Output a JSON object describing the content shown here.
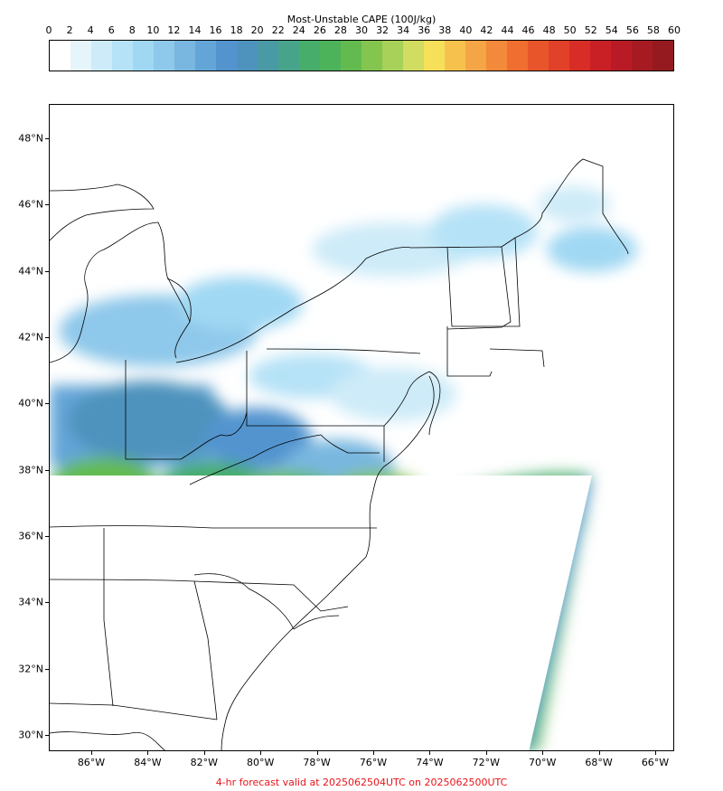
{
  "colorbar": {
    "title": "Most-Unstable CAPE (100J/kg)",
    "ticks": [
      "0",
      "2",
      "4",
      "6",
      "8",
      "10",
      "12",
      "14",
      "16",
      "18",
      "20",
      "22",
      "24",
      "26",
      "28",
      "30",
      "32",
      "34",
      "36",
      "38",
      "40",
      "42",
      "44",
      "46",
      "48",
      "50",
      "52",
      "54",
      "56",
      "58",
      "60"
    ],
    "colors": [
      "#ffffff",
      "#e6f5fc",
      "#cdebf8",
      "#b6e2f7",
      "#a0d8f3",
      "#8ec8ea",
      "#79b7e0",
      "#64a5d8",
      "#5394cf",
      "#4d93bd",
      "#4a9aa6",
      "#47a38a",
      "#47ad6a",
      "#4db35a",
      "#63bb4f",
      "#84c54f",
      "#a7d159",
      "#d1dd61",
      "#f6e05a",
      "#f6c24d",
      "#f4a545",
      "#f3893a",
      "#ef6e30",
      "#e9552a",
      "#e14128",
      "#d82d27",
      "#c92025",
      "#b81b25",
      "#a61a22",
      "#951a1f"
    ]
  },
  "map": {
    "lat_labels": [
      "48°N",
      "46°N",
      "44°N",
      "42°N",
      "40°N",
      "38°N",
      "36°N",
      "34°N",
      "32°N",
      "30°N"
    ],
    "lon_labels": [
      "86°W",
      "84°W",
      "82°W",
      "80°W",
      "78°W",
      "76°W",
      "74°W",
      "72°W",
      "70°W",
      "68°W",
      "66°W"
    ]
  },
  "footer": "4-hr forecast valid at 2025062504UTC on 2025062500UTC"
}
